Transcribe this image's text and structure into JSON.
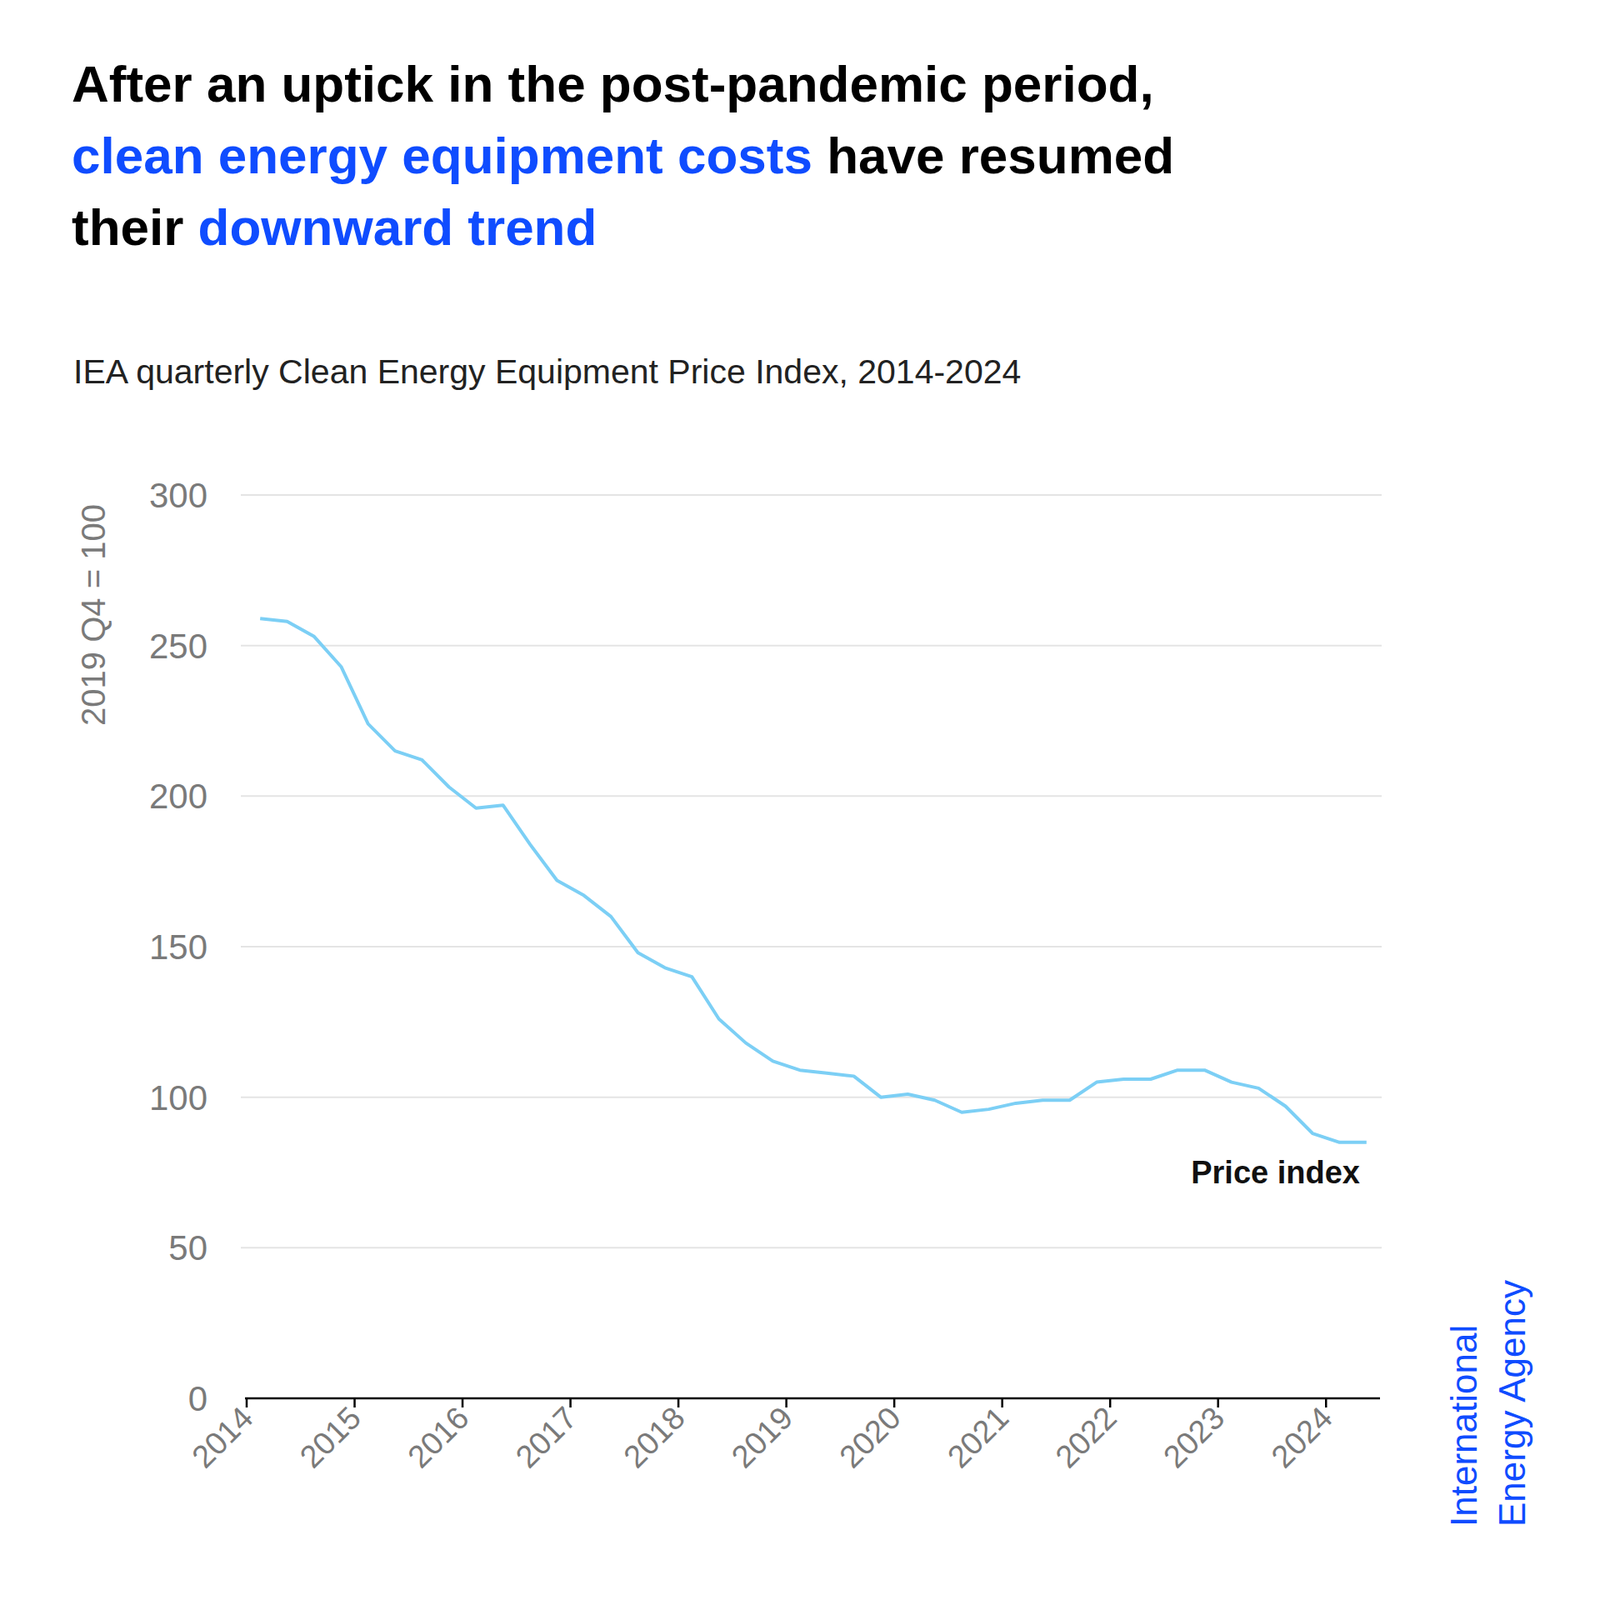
{
  "chart_data": {
    "type": "line",
    "title_lines": [
      "After an uptick in the post-pandemic period,",
      "clean energy equipment costs have resumed",
      "their downward trend"
    ],
    "title_highlights": [
      "clean energy equipment costs",
      "downward trend"
    ],
    "subtitle": "IEA quarterly Clean Energy Equipment Price Index, 2014-2024",
    "y_label": "2019 Q4 = 100",
    "logo_lines": [
      "International",
      "Energy Agency"
    ],
    "x": [
      2014.125,
      2014.375,
      2014.625,
      2014.875,
      2015.125,
      2015.375,
      2015.625,
      2015.875,
      2016.125,
      2016.375,
      2016.625,
      2016.875,
      2017.125,
      2017.375,
      2017.625,
      2017.875,
      2018.125,
      2018.375,
      2018.625,
      2018.875,
      2019.125,
      2019.375,
      2019.625,
      2019.875,
      2020.125,
      2020.375,
      2020.625,
      2020.875,
      2021.125,
      2021.375,
      2021.625,
      2021.875,
      2022.125,
      2022.375,
      2022.625,
      2022.875,
      2023.125,
      2023.375,
      2023.625,
      2023.875,
      2024.125,
      2024.375
    ],
    "series": [
      {
        "name": "Price index",
        "color": "#7ccff5",
        "values": [
          259,
          258,
          253,
          243,
          224,
          215,
          212,
          203,
          196,
          197,
          184,
          172,
          167,
          160,
          148,
          143,
          140,
          126,
          118,
          112,
          109,
          108,
          107,
          100,
          101,
          99,
          95,
          96,
          98,
          99,
          99,
          105,
          106,
          106,
          109,
          109,
          105,
          103,
          97,
          88,
          85,
          85
        ]
      }
    ],
    "xlim": [
      2014,
      2024.5
    ],
    "xticks": [
      2014,
      2015,
      2016,
      2017,
      2018,
      2019,
      2020,
      2021,
      2022,
      2023,
      2024
    ],
    "ylim": [
      0,
      300
    ],
    "yticks": [
      0,
      50,
      100,
      150,
      200,
      250,
      300
    ],
    "grid": true
  }
}
